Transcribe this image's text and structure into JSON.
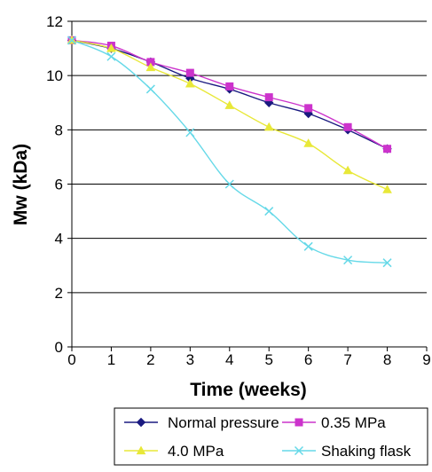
{
  "chart_data": {
    "type": "line",
    "xlabel": "Time (weeks)",
    "ylabel": "Mw (kDa)",
    "xlim": [
      0,
      9
    ],
    "ylim": [
      0,
      12
    ],
    "x_ticks": [
      "0",
      "1",
      "2",
      "3",
      "4",
      "5",
      "6",
      "7",
      "8",
      "9"
    ],
    "y_ticks": [
      "0",
      "2",
      "4",
      "6",
      "8",
      "10",
      "12"
    ],
    "grid": "horizontal",
    "legend_position": "bottom",
    "x": [
      0,
      1,
      2,
      3,
      4,
      5,
      6,
      7,
      8
    ],
    "series": [
      {
        "name": "Normal pressure",
        "color": "#1a1a80",
        "marker": "diamond",
        "values": [
          11.3,
          11.0,
          10.5,
          9.9,
          9.5,
          9.0,
          8.6,
          8.0,
          7.3
        ]
      },
      {
        "name": "0.35 MPa",
        "color": "#cc33cc",
        "marker": "square",
        "values": [
          11.3,
          11.1,
          10.5,
          10.1,
          9.6,
          9.2,
          8.8,
          8.1,
          7.3
        ]
      },
      {
        "name": "4.0 MPa",
        "color": "#e8e838",
        "marker": "triangle",
        "values": [
          11.3,
          11.0,
          10.3,
          9.7,
          8.9,
          8.1,
          7.5,
          6.5,
          5.8
        ]
      },
      {
        "name": "Shaking flask",
        "color": "#66d9e8",
        "marker": "x",
        "values": [
          11.3,
          10.7,
          9.5,
          7.9,
          6.0,
          5.0,
          3.7,
          3.2,
          3.1
        ]
      }
    ]
  }
}
